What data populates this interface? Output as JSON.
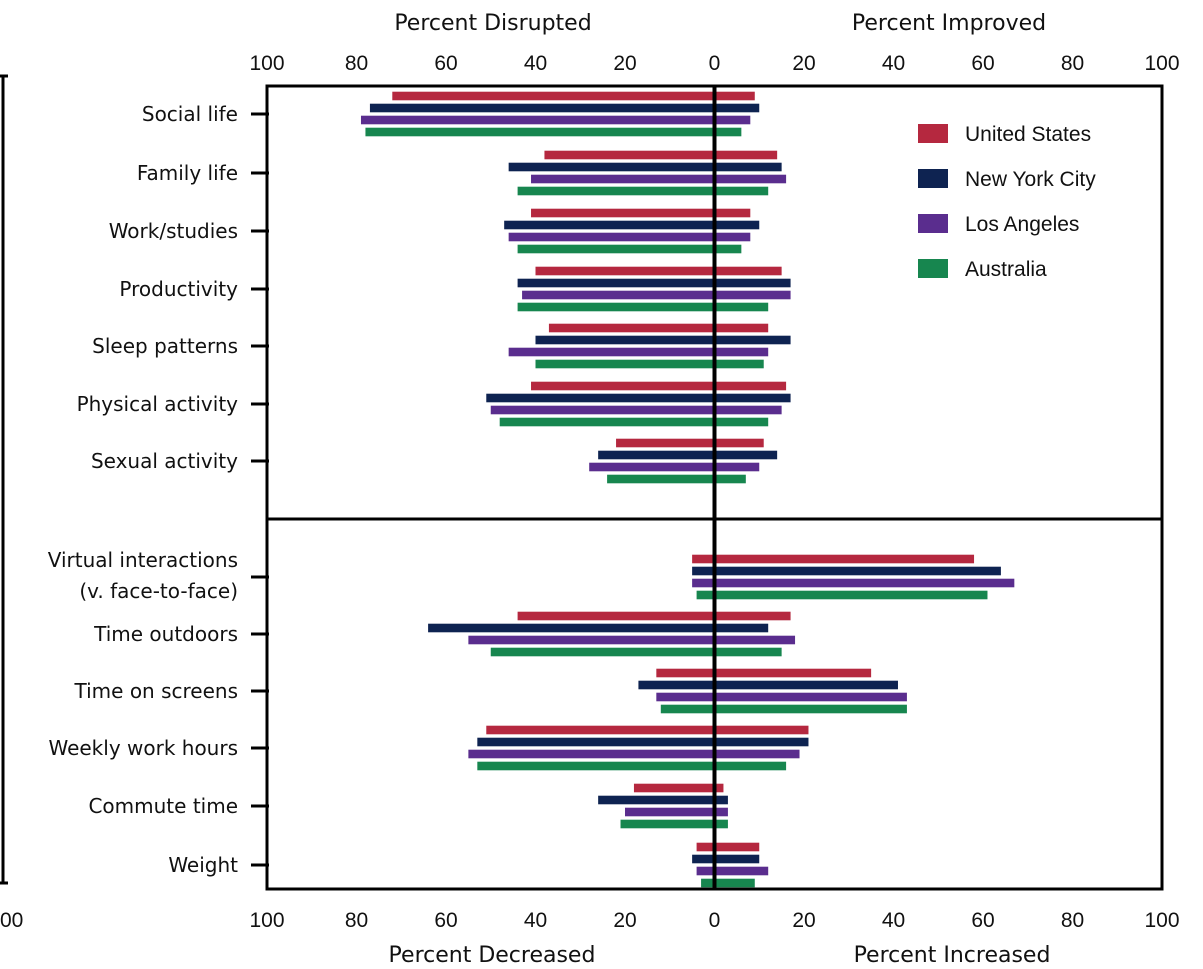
{
  "chart_data": {
    "type": "bar",
    "orientation": "horizontal",
    "diverging": true,
    "x_range": [
      -100,
      100
    ],
    "ticks": [
      100,
      80,
      60,
      40,
      20,
      0,
      20,
      40,
      60,
      80,
      100
    ],
    "grid": false,
    "legend_position": "top-right",
    "top_axis": {
      "left_label": "Percent Disrupted",
      "right_label": "Percent Improved"
    },
    "bottom_axis": {
      "left_label": "Percent Decreased",
      "right_label": "Percent Increased"
    },
    "left_edge_fragment": "00",
    "series": [
      {
        "name": "United States",
        "color": "#b5283f"
      },
      {
        "name": "New York City",
        "color": "#0e2351"
      },
      {
        "name": "Los Angeles",
        "color": "#5a2d8e"
      },
      {
        "name": "Australia",
        "color": "#17864f"
      }
    ],
    "panels": [
      {
        "id": "disrupted-improved",
        "categories": [
          {
            "label_lines": [
              "Social life"
            ],
            "negative": [
              72,
              77,
              79,
              78
            ],
            "positive": [
              9,
              10,
              8,
              6
            ]
          },
          {
            "label_lines": [
              "Family life"
            ],
            "negative": [
              38,
              46,
              41,
              44
            ],
            "positive": [
              14,
              15,
              16,
              12
            ]
          },
          {
            "label_lines": [
              "Work/studies"
            ],
            "negative": [
              41,
              47,
              46,
              44
            ],
            "positive": [
              8,
              10,
              8,
              6
            ]
          },
          {
            "label_lines": [
              "Productivity"
            ],
            "negative": [
              40,
              44,
              43,
              44
            ],
            "positive": [
              15,
              17,
              17,
              12
            ]
          },
          {
            "label_lines": [
              "Sleep patterns"
            ],
            "negative": [
              37,
              40,
              46,
              40
            ],
            "positive": [
              12,
              17,
              12,
              11
            ]
          },
          {
            "label_lines": [
              "Physical activity"
            ],
            "negative": [
              41,
              51,
              50,
              48
            ],
            "positive": [
              16,
              17,
              15,
              12
            ]
          },
          {
            "label_lines": [
              "Sexual activity"
            ],
            "negative": [
              22,
              26,
              28,
              24
            ],
            "positive": [
              11,
              14,
              10,
              7
            ]
          }
        ]
      },
      {
        "id": "decreased-increased",
        "categories": [
          {
            "label_lines": [
              "Virtual interactions",
              "(v. face-to-face)"
            ],
            "negative": [
              5,
              5,
              5,
              4
            ],
            "positive": [
              58,
              64,
              67,
              61
            ]
          },
          {
            "label_lines": [
              "Time outdoors"
            ],
            "negative": [
              44,
              64,
              55,
              50
            ],
            "positive": [
              17,
              12,
              18,
              15
            ]
          },
          {
            "label_lines": [
              "Time on screens"
            ],
            "negative": [
              13,
              17,
              13,
              12
            ],
            "positive": [
              35,
              41,
              43,
              43
            ]
          },
          {
            "label_lines": [
              "Weekly work hours"
            ],
            "negative": [
              51,
              53,
              55,
              53
            ],
            "positive": [
              21,
              21,
              19,
              16
            ]
          },
          {
            "label_lines": [
              "Commute time"
            ],
            "negative": [
              18,
              26,
              20,
              21
            ],
            "positive": [
              2,
              3,
              3,
              3
            ]
          },
          {
            "label_lines": [
              "Weight"
            ],
            "negative": [
              4,
              5,
              4,
              3
            ],
            "positive": [
              10,
              10,
              12,
              9
            ]
          }
        ]
      }
    ]
  }
}
